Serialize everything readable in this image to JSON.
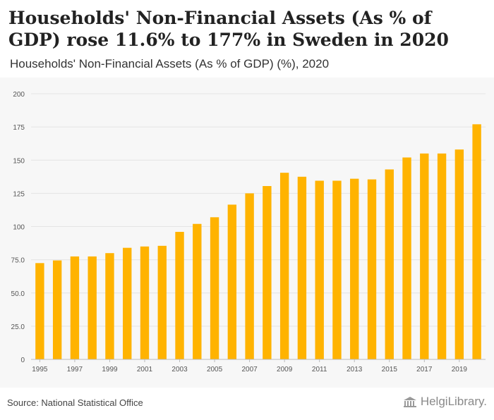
{
  "header": {
    "title": "Households' Non-Financial Assets (As % of GDP) rose 11.6% to 177% in Sweden in 2020",
    "subtitle": "Households' Non-Financial Assets (As % of GDP) (%), 2020"
  },
  "footer": {
    "source": "Source: National Statistical Office",
    "brand": "HelgiLibrary."
  },
  "colors": {
    "bar": "#ffb300",
    "grid": "#e4e4e4",
    "tick_text": "#555555"
  },
  "chart_data": {
    "type": "bar",
    "title": "Households' Non-Financial Assets (As % of GDP) (%), 2020",
    "xlabel": "",
    "ylabel": "",
    "categories": [
      "1995",
      "1996",
      "1997",
      "1998",
      "1999",
      "2000",
      "2001",
      "2002",
      "2003",
      "2004",
      "2005",
      "2006",
      "2007",
      "2008",
      "2009",
      "2010",
      "2011",
      "2012",
      "2013",
      "2014",
      "2015",
      "2016",
      "2017",
      "2018",
      "2019",
      "2020"
    ],
    "x_tick_labels": [
      "1995",
      "1997",
      "1999",
      "2001",
      "2003",
      "2005",
      "2007",
      "2009",
      "2011",
      "2013",
      "2015",
      "2017",
      "2019"
    ],
    "values": [
      72.5,
      74.5,
      77.5,
      77.5,
      80,
      84,
      85,
      85.5,
      96,
      102,
      107,
      116.5,
      125,
      130.5,
      140.5,
      137.5,
      134.5,
      134.5,
      136,
      135.5,
      143,
      152,
      155,
      155,
      158,
      177
    ],
    "ylim": [
      0,
      200
    ],
    "y_ticks": [
      0,
      25,
      50,
      75,
      100,
      125,
      150,
      175,
      200
    ],
    "y_tick_labels": [
      "0",
      "25.0",
      "50.0",
      "75.0",
      "100",
      "125",
      "150",
      "175",
      "200"
    ],
    "grid": true
  }
}
